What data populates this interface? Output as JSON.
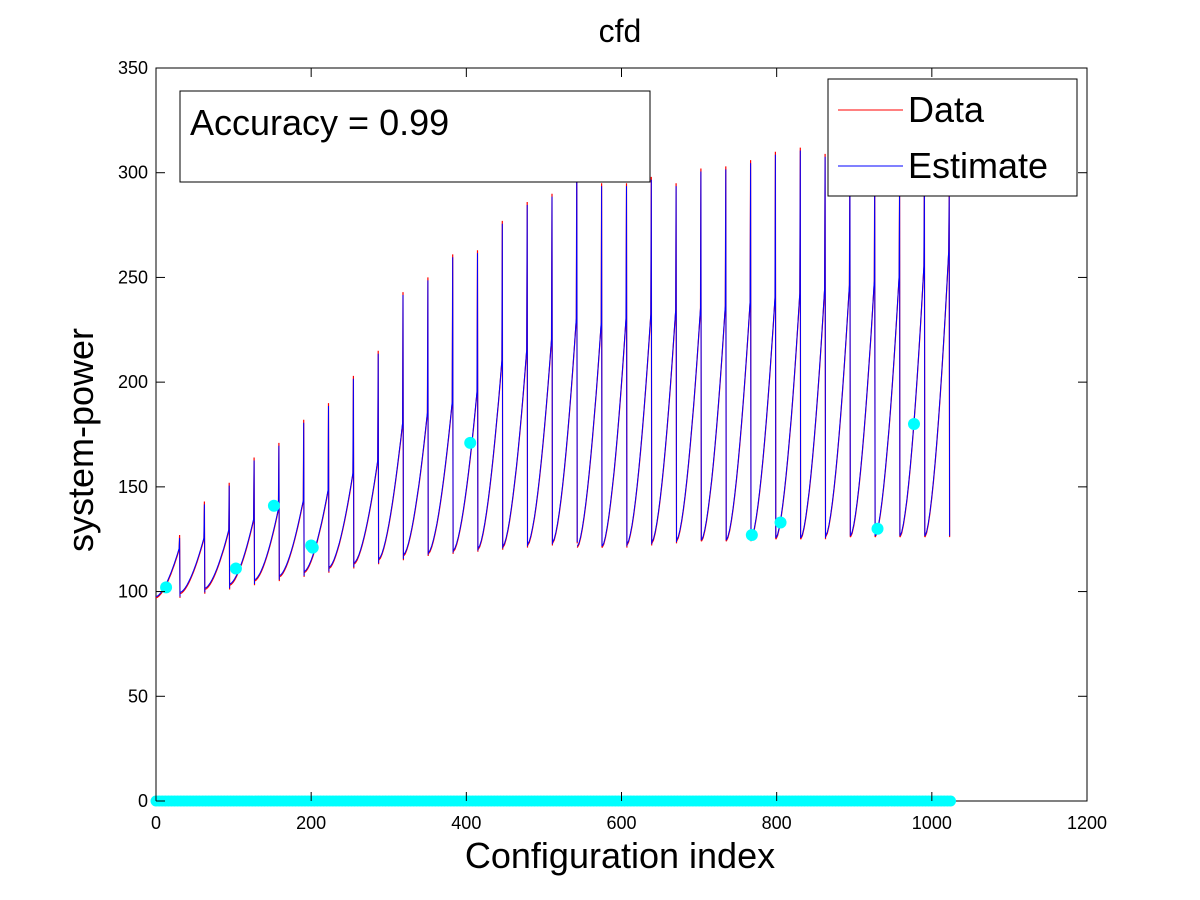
{
  "chart_data": {
    "type": "line",
    "title": "cfd",
    "xlabel": "Configuration index",
    "ylabel": "system-power",
    "xlim": [
      0,
      1200
    ],
    "ylim": [
      0,
      350
    ],
    "xticks": [
      0,
      200,
      400,
      600,
      800,
      1000,
      1200
    ],
    "yticks": [
      0,
      50,
      100,
      150,
      200,
      250,
      300,
      350
    ],
    "grid": false,
    "legend": {
      "position": "top-right",
      "entries": [
        "Data",
        "Estimate"
      ]
    },
    "annotation": "Accuracy = 0.99",
    "colors": {
      "data": "#ff0000",
      "estimate": "#0000ff",
      "sampled": "#00ffff",
      "axes": "#000000"
    },
    "series": [
      {
        "name": "Data",
        "segments": [
          {
            "x0": 0,
            "x1": 31,
            "y_start": 97,
            "y_end": 120,
            "peak": 127
          },
          {
            "x0": 31,
            "x1": 63,
            "y_start": 99,
            "y_end": 125,
            "peak": 143
          },
          {
            "x0": 63,
            "x1": 95,
            "y_start": 101,
            "y_end": 129,
            "peak": 152
          },
          {
            "x0": 95,
            "x1": 127,
            "y_start": 103,
            "y_end": 134,
            "peak": 164
          },
          {
            "x0": 127,
            "x1": 159,
            "y_start": 105,
            "y_end": 139,
            "peak": 171
          },
          {
            "x0": 159,
            "x1": 191,
            "y_start": 107,
            "y_end": 143,
            "peak": 182
          },
          {
            "x0": 191,
            "x1": 223,
            "y_start": 109,
            "y_end": 148,
            "peak": 190
          },
          {
            "x0": 223,
            "x1": 255,
            "y_start": 111,
            "y_end": 156,
            "peak": 203
          },
          {
            "x0": 255,
            "x1": 287,
            "y_start": 113,
            "y_end": 162,
            "peak": 215
          },
          {
            "x0": 287,
            "x1": 319,
            "y_start": 115,
            "y_end": 180,
            "peak": 243
          },
          {
            "x0": 319,
            "x1": 351,
            "y_start": 117,
            "y_end": 185,
            "peak": 250
          },
          {
            "x0": 351,
            "x1": 383,
            "y_start": 118,
            "y_end": 190,
            "peak": 261
          },
          {
            "x0": 383,
            "x1": 415,
            "y_start": 119,
            "y_end": 195,
            "peak": 263
          },
          {
            "x0": 415,
            "x1": 447,
            "y_start": 120,
            "y_end": 210,
            "peak": 277
          },
          {
            "x0": 447,
            "x1": 479,
            "y_start": 121,
            "y_end": 215,
            "peak": 286
          },
          {
            "x0": 479,
            "x1": 511,
            "y_start": 122,
            "y_end": 220,
            "peak": 290
          },
          {
            "x0": 511,
            "x1": 543,
            "y_start": 123,
            "y_end": 230,
            "peak": 309
          },
          {
            "x0": 543,
            "x1": 575,
            "y_start": 121,
            "y_end": 228,
            "peak": 295
          },
          {
            "x0": 575,
            "x1": 607,
            "y_start": 121,
            "y_end": 230,
            "peak": 295
          },
          {
            "x0": 607,
            "x1": 639,
            "y_start": 122,
            "y_end": 232,
            "peak": 298
          },
          {
            "x0": 639,
            "x1": 671,
            "y_start": 123,
            "y_end": 234,
            "peak": 295
          },
          {
            "x0": 671,
            "x1": 703,
            "y_start": 124,
            "y_end": 235,
            "peak": 302
          },
          {
            "x0": 703,
            "x1": 735,
            "y_start": 124,
            "y_end": 236,
            "peak": 303
          },
          {
            "x0": 735,
            "x1": 767,
            "y_start": 124,
            "y_end": 238,
            "peak": 306
          },
          {
            "x0": 767,
            "x1": 799,
            "y_start": 125,
            "y_end": 240,
            "peak": 310
          },
          {
            "x0": 799,
            "x1": 831,
            "y_start": 125,
            "y_end": 242,
            "peak": 312
          },
          {
            "x0": 831,
            "x1": 863,
            "y_start": 125,
            "y_end": 244,
            "peak": 309
          },
          {
            "x0": 863,
            "x1": 895,
            "y_start": 126,
            "y_end": 246,
            "peak": 305
          },
          {
            "x0": 895,
            "x1": 927,
            "y_start": 126,
            "y_end": 248,
            "peak": 298
          },
          {
            "x0": 927,
            "x1": 959,
            "y_start": 126,
            "y_end": 250,
            "peak": 295
          },
          {
            "x0": 959,
            "x1": 991,
            "y_start": 126,
            "y_end": 255,
            "peak": 300
          },
          {
            "x0": 991,
            "x1": 1023,
            "y_start": 126,
            "y_end": 262,
            "peak": 290
          }
        ]
      },
      {
        "name": "Estimate",
        "offset": 0.6
      },
      {
        "name": "",
        "sampled_points": [
          {
            "x": 13,
            "y": 102
          },
          {
            "x": 103,
            "y": 111
          },
          {
            "x": 152,
            "y": 141
          },
          {
            "x": 200,
            "y": 122
          },
          {
            "x": 202,
            "y": 121
          },
          {
            "x": 405,
            "y": 171
          },
          {
            "x": 768,
            "y": 127
          },
          {
            "x": 805,
            "y": 133
          },
          {
            "x": 930,
            "y": 130
          },
          {
            "x": 977,
            "y": 180
          }
        ],
        "zero_range": [
          0,
          1024
        ]
      }
    ]
  }
}
